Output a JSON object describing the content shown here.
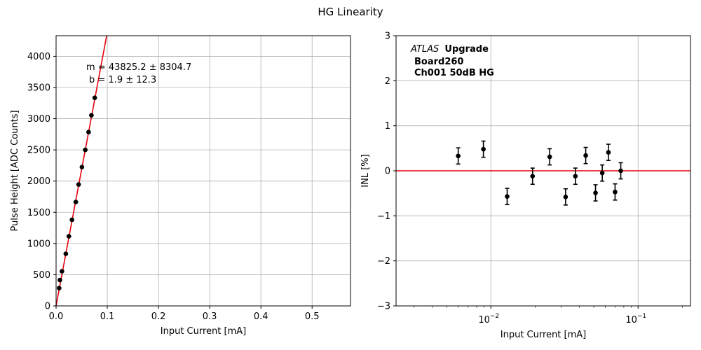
{
  "figure": {
    "title": "HG Linearity"
  },
  "chart_data": [
    {
      "type": "scatter",
      "name": "pulse-height-vs-current",
      "title": "",
      "xlabel": "Input Current [mA]",
      "ylabel": "Pulse Height [ADC Counts]",
      "xlim": [
        0,
        0.575
      ],
      "ylim": [
        0,
        4330
      ],
      "xticks": [
        "0.0",
        "0.1",
        "0.2",
        "0.3",
        "0.4",
        "0.5"
      ],
      "xtick_values": [
        0,
        0.1,
        0.2,
        0.3,
        0.4,
        0.5
      ],
      "yticks": [
        "0",
        "500",
        "1000",
        "1500",
        "2000",
        "2500",
        "3000",
        "3500",
        "4000"
      ],
      "ytick_values": [
        0,
        500,
        1000,
        1500,
        2000,
        2500,
        3000,
        3500,
        4000
      ],
      "grid": true,
      "points": {
        "x": [
          0.006,
          0.0075,
          0.0115,
          0.019,
          0.025,
          0.031,
          0.0385,
          0.044,
          0.0505,
          0.057,
          0.0635,
          0.069,
          0.0755
        ],
        "y": [
          285,
          415,
          555,
          835,
          1115,
          1380,
          1665,
          1945,
          2225,
          2500,
          2785,
          3055,
          3335
        ],
        "color": "#000000"
      },
      "fit_line": {
        "slope": 43825.2,
        "intercept": 1.9,
        "color": "#e8000b"
      },
      "annotations": [
        "m = 43825.2 ± 8304.7",
        "b = 1.9 ± 12.3"
      ]
    },
    {
      "type": "scatter",
      "name": "inl-vs-current",
      "title": "",
      "xlabel": "Input Current [mA]",
      "ylabel": "INL [%]",
      "xscale": "log",
      "xlim": [
        0.00227,
        0.227
      ],
      "ylim": [
        -3,
        3
      ],
      "xticks": [
        "10",
        "10"
      ],
      "xtick_exponents": [
        "−2",
        "−1"
      ],
      "xtick_values": [
        0.01,
        0.1
      ],
      "yticks": [
        "−3",
        "−2",
        "−1",
        "0",
        "1",
        "2",
        "3"
      ],
      "ytick_values": [
        -3,
        -2,
        -1,
        0,
        1,
        2,
        3
      ],
      "grid": true,
      "points": {
        "x": [
          0.006,
          0.0089,
          0.0129,
          0.0192,
          0.0251,
          0.0322,
          0.0375,
          0.0441,
          0.0514,
          0.0571,
          0.0629,
          0.0698,
          0.0763
        ],
        "y": [
          0.33,
          0.48,
          -0.57,
          -0.12,
          0.31,
          -0.58,
          -0.12,
          0.34,
          -0.49,
          -0.05,
          0.41,
          -0.47,
          0.0
        ],
        "yerr": 0.18,
        "color": "#000000"
      },
      "reference_line": {
        "y": 0,
        "color": "#e8000b"
      },
      "annotations": {
        "atlas": "ATLAS",
        "upgrade": "Upgrade",
        "board": "Board260",
        "channel": "Ch001 50dB HG"
      }
    }
  ]
}
